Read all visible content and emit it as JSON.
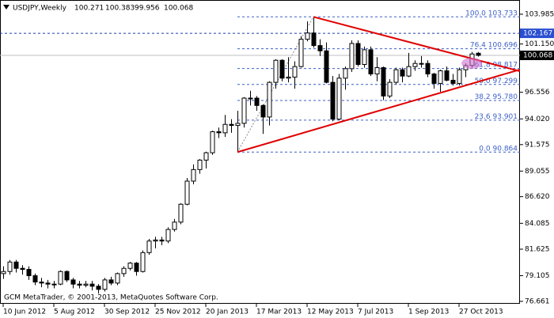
{
  "chart_data": {
    "type": "candlestick",
    "title": "USDJPY,Weekly",
    "footer": "GCM MetaTrader, © 2001-2013, MetaQuotes Software Corp.",
    "categories": [
      "10 Jun 2012",
      null,
      null,
      null,
      null,
      null,
      null,
      null,
      "5 Aug 2012",
      null,
      null,
      null,
      null,
      null,
      null,
      null,
      "30 Sep 2012",
      null,
      null,
      null,
      null,
      null,
      null,
      null,
      "25 Nov 2012",
      null,
      null,
      null,
      null,
      null,
      null,
      null,
      "20 Jan 2013",
      null,
      null,
      null,
      null,
      null,
      null,
      null,
      "17 Mar 2013",
      null,
      null,
      null,
      null,
      null,
      null,
      null,
      "12 May 2013",
      null,
      null,
      null,
      null,
      null,
      null,
      null,
      "7 Jul 2013",
      null,
      null,
      null,
      null,
      null,
      null,
      null,
      "1 Sep 2013",
      null,
      null,
      null,
      null,
      null,
      null,
      null,
      "27 Oct 2013",
      null,
      null,
      null
    ],
    "open": [
      79.3,
      79.5,
      80.4,
      79.8,
      79.7,
      79.1,
      78.5,
      78.4,
      78.3,
      78.3,
      79.5,
      78.7,
      78.3,
      78.2,
      78.3,
      78.1,
      77.8,
      78.7,
      78.4,
      79.3,
      79.8,
      80.3,
      79.5,
      81.3,
      82.4,
      82.5,
      82.4,
      83.5,
      84.2,
      85.9,
      88.1,
      89.2,
      90.1,
      90.8,
      92.8,
      92.7,
      93.5,
      93.4,
      93.6,
      96.0,
      96.0,
      95.3,
      94.2,
      97.5,
      99.6,
      97.9,
      98.0,
      99.0,
      101.6,
      102.2,
      101.0,
      100.5,
      97.5,
      94.0,
      97.9,
      98.8,
      101.2,
      99.2,
      100.6,
      98.3,
      98.9,
      96.2,
      97.5,
      98.7,
      98.1,
      99.0,
      99.3,
      99.3,
      98.3,
      97.4,
      98.6,
      97.7,
      97.4,
      98.7,
      99.1,
      100.271
    ],
    "high": [
      80.0,
      80.6,
      80.6,
      80.1,
      80.0,
      79.3,
      78.9,
      78.7,
      78.6,
      79.6,
      79.6,
      78.9,
      78.6,
      78.6,
      78.6,
      78.3,
      78.9,
      79.0,
      79.4,
      80.0,
      80.4,
      80.4,
      81.5,
      82.6,
      82.8,
      82.8,
      83.7,
      84.5,
      86.0,
      88.4,
      89.7,
      90.2,
      90.9,
      92.9,
      93.2,
      94.4,
      94.0,
      94.8,
      96.1,
      96.7,
      96.2,
      95.4,
      97.6,
      99.7,
      99.7,
      99.9,
      99.5,
      101.9,
      103.3,
      103.733,
      101.6,
      101.3,
      98.1,
      98.3,
      99.0,
      101.5,
      101.5,
      100.9,
      100.9,
      99.9,
      99.0,
      97.8,
      98.9,
      98.9,
      100.3,
      99.6,
      100.0,
      99.6,
      98.4,
      98.7,
      99.0,
      98.3,
      98.9,
      99.3,
      100.4,
      100.383
    ],
    "low": [
      78.8,
      79.2,
      79.4,
      79.2,
      78.7,
      78.2,
      78.0,
      77.9,
      77.9,
      78.2,
      78.5,
      77.9,
      77.9,
      78.0,
      77.7,
      77.4,
      77.6,
      78.2,
      78.2,
      79.0,
      79.6,
      79.1,
      79.4,
      81.1,
      81.7,
      82.0,
      82.2,
      83.3,
      84.0,
      85.8,
      87.8,
      88.8,
      89.3,
      90.6,
      92.2,
      92.3,
      92.7,
      90.864,
      93.2,
      95.3,
      94.8,
      92.6,
      93.4,
      96.9,
      97.6,
      97.5,
      96.9,
      98.9,
      101.4,
      100.8,
      100.0,
      97.4,
      93.8,
      93.9,
      96.8,
      98.5,
      99.0,
      98.9,
      98.1,
      97.6,
      95.8,
      96.0,
      97.3,
      97.5,
      98.0,
      98.6,
      98.9,
      98.0,
      96.9,
      96.6,
      97.6,
      97.2,
      97.2,
      98.0,
      98.9,
      99.956
    ],
    "close": [
      79.5,
      80.4,
      79.8,
      79.7,
      79.1,
      78.5,
      78.4,
      78.3,
      78.3,
      79.5,
      78.7,
      78.3,
      78.2,
      78.3,
      78.1,
      77.8,
      78.7,
      78.4,
      79.3,
      79.8,
      80.3,
      79.5,
      81.3,
      82.4,
      82.5,
      82.4,
      83.5,
      84.2,
      85.9,
      88.1,
      89.2,
      90.1,
      90.8,
      92.8,
      92.7,
      93.5,
      93.4,
      93.6,
      96.0,
      96.0,
      95.3,
      94.2,
      97.5,
      99.6,
      97.9,
      98.0,
      99.0,
      101.6,
      102.2,
      101.0,
      100.5,
      97.5,
      94.0,
      97.9,
      98.8,
      101.2,
      99.2,
      100.6,
      98.3,
      98.9,
      96.2,
      97.5,
      98.7,
      98.1,
      99.0,
      99.3,
      99.3,
      98.3,
      97.4,
      98.6,
      97.7,
      97.4,
      98.7,
      99.1,
      100.2,
      100.068
    ],
    "up_color": "#ffffff",
    "down_color": "#000000",
    "edge_color": "#000000",
    "ylim": [
      76.43,
      104.96
    ],
    "yticks": [
      103.985,
      {
        "value": 101.15,
        "label": "101.150"
      },
      96.556,
      {
        "value": 94.02,
        "label": "94.020"
      },
      91.575,
      89.055,
      {
        "value": 86.62,
        "label": "86.620"
      },
      84.085,
      81.625,
      79.105,
      76.661
    ],
    "hline": 102.167,
    "fibonacci": {
      "color": "#3c5fc8",
      "x": [
        37,
        49
      ],
      "levels": [
        {
          "level": "100.0",
          "price": 103.733
        },
        {
          "level": "76.4",
          "price": 100.696
        },
        {
          "level": "61.8",
          "price": 98.817
        },
        {
          "level": "50.0",
          "price": 97.299
        },
        {
          "level": "38.2",
          "price": {
            "value": 95.78,
            "label": "95.780"
          }
        },
        {
          "level": "23.6",
          "price": 93.901
        },
        {
          "level": "0.0",
          "price": 90.864
        }
      ]
    },
    "trendlines": [
      {
        "color": "#e00000",
        "x": [
          49,
          81.6
        ],
        "y": [
          103.733,
          98.56
        ]
      },
      {
        "color": "#e00000",
        "x": [
          37,
          81.6
        ],
        "y": [
          90.864,
          98.71
        ]
      }
    ]
  }
}
